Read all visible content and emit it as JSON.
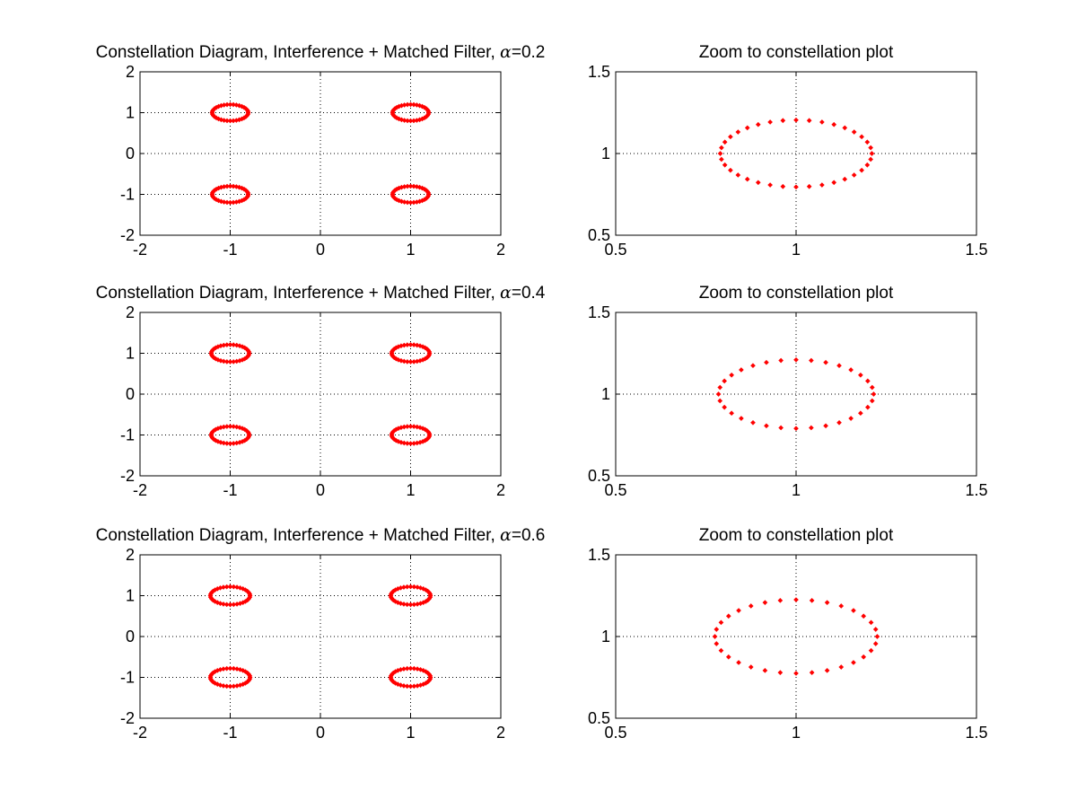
{
  "figure": {
    "background": "#ffffff",
    "marker_color": "#ff0000"
  },
  "chart_data": [
    {
      "type": "scatter",
      "title": "Constellation Diagram, Interference + Matched Filter, α=0.2",
      "title_main": "Constellation Diagram, Interference + Matched Filter, ",
      "title_symbol": "α",
      "title_suffix": "=0.2",
      "xlabel": "",
      "ylabel": "",
      "xlim": [
        -2,
        2
      ],
      "ylim": [
        -2,
        2
      ],
      "xticks": [
        "-2",
        "-1",
        "0",
        "1",
        "2"
      ],
      "yticks": [
        "-2",
        "-1",
        "0",
        "1",
        "2"
      ],
      "grid": true,
      "series": [
        {
          "centers": [
            [
              -1,
              1
            ],
            [
              1,
              1
            ],
            [
              -1,
              -1
            ],
            [
              1,
              -1
            ]
          ],
          "rx": 0.2,
          "ry": 0.2,
          "points_per_ellipse": 36
        }
      ]
    },
    {
      "type": "scatter",
      "title": "Zoom to constellation plot",
      "title_main": "Zoom to constellation plot",
      "xlabel": "",
      "ylabel": "",
      "xlim": [
        0.5,
        1.5
      ],
      "ylim": [
        0.5,
        1.5
      ],
      "xticks": [
        "0.5",
        "1",
        "1.5"
      ],
      "yticks": [
        "0.5",
        "1",
        "1.5"
      ],
      "grid": true,
      "series": [
        {
          "centers": [
            [
              1,
              1
            ]
          ],
          "rx": 0.21,
          "ry": 0.205,
          "points_per_ellipse": 36
        }
      ]
    },
    {
      "type": "scatter",
      "title": "Constellation Diagram, Interference + Matched Filter, α=0.4",
      "title_main": "Constellation Diagram, Interference + Matched Filter, ",
      "title_symbol": "α",
      "title_suffix": "=0.4",
      "xlabel": "",
      "ylabel": "",
      "xlim": [
        -2,
        2
      ],
      "ylim": [
        -2,
        2
      ],
      "xticks": [
        "-2",
        "-1",
        "0",
        "1",
        "2"
      ],
      "yticks": [
        "-2",
        "-1",
        "0",
        "1",
        "2"
      ],
      "grid": true,
      "series": [
        {
          "centers": [
            [
              -1,
              1
            ],
            [
              1,
              1
            ],
            [
              -1,
              -1
            ],
            [
              1,
              -1
            ]
          ],
          "rx": 0.21,
          "ry": 0.21,
          "points_per_ellipse": 36
        }
      ]
    },
    {
      "type": "scatter",
      "title": "Zoom to constellation plot",
      "title_main": "Zoom to constellation plot",
      "xlabel": "",
      "ylabel": "",
      "xlim": [
        0.5,
        1.5
      ],
      "ylim": [
        0.5,
        1.5
      ],
      "xticks": [
        "0.5",
        "1",
        "1.5"
      ],
      "yticks": [
        "0.5",
        "1",
        "1.5"
      ],
      "grid": true,
      "series": [
        {
          "centers": [
            [
              1,
              1
            ]
          ],
          "rx": 0.215,
          "ry": 0.21,
          "points_per_ellipse": 32
        }
      ]
    },
    {
      "type": "scatter",
      "title": "Constellation Diagram, Interference + Matched Filter, α=0.6",
      "title_main": "Constellation Diagram, Interference + Matched Filter, ",
      "title_symbol": "α",
      "title_suffix": "=0.6",
      "xlabel": "",
      "ylabel": "",
      "xlim": [
        -2,
        2
      ],
      "ylim": [
        -2,
        2
      ],
      "xticks": [
        "-2",
        "-1",
        "0",
        "1",
        "2"
      ],
      "yticks": [
        "-2",
        "-1",
        "0",
        "1",
        "2"
      ],
      "grid": true,
      "series": [
        {
          "centers": [
            [
              -1,
              1
            ],
            [
              1,
              1
            ],
            [
              -1,
              -1
            ],
            [
              1,
              -1
            ]
          ],
          "rx": 0.22,
          "ry": 0.22,
          "points_per_ellipse": 36
        }
      ]
    },
    {
      "type": "scatter",
      "title": "Zoom to constellation plot",
      "title_main": "Zoom to constellation plot",
      "xlabel": "",
      "ylabel": "",
      "xlim": [
        0.5,
        1.5
      ],
      "ylim": [
        0.5,
        1.5
      ],
      "xticks": [
        "0.5",
        "1",
        "1.5"
      ],
      "yticks": [
        "0.5",
        "1",
        "1.5"
      ],
      "grid": true,
      "series": [
        {
          "centers": [
            [
              1,
              1
            ]
          ],
          "rx": 0.225,
          "ry": 0.225,
          "points_per_ellipse": 32
        }
      ]
    }
  ]
}
